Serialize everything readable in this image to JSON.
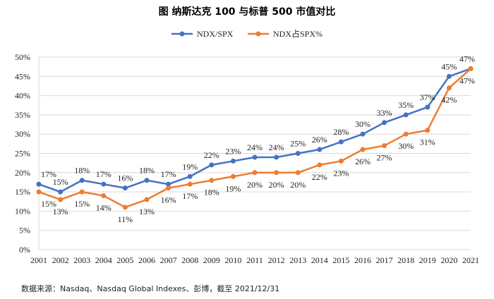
{
  "chart_data": {
    "type": "line",
    "title": "图  纳斯达克 100 与标普 500 市值对比",
    "categories": [
      "2001",
      "2002",
      "2003",
      "2004",
      "2005",
      "2006",
      "2007",
      "2008",
      "2009",
      "2010",
      "2011",
      "2012",
      "2013",
      "2014",
      "2015",
      "2016",
      "2017",
      "2018",
      "2019",
      "2020",
      "2021"
    ],
    "series": [
      {
        "name": "NDX/SPX",
        "color": "#4472C4",
        "values": [
          17,
          15,
          18,
          17,
          16,
          18,
          17,
          19,
          22,
          23,
          24,
          24,
          25,
          26,
          28,
          30,
          33,
          35,
          37,
          45,
          47
        ]
      },
      {
        "name": "NDX占SPX%",
        "color": "#ED7D31",
        "values": [
          15,
          13,
          15,
          14,
          11,
          13,
          16,
          17,
          18,
          19,
          20,
          20,
          20,
          22,
          23,
          26,
          27,
          30,
          31,
          42,
          47
        ]
      }
    ],
    "ylim": [
      0,
      50
    ],
    "yticks": [
      0,
      5,
      10,
      15,
      20,
      25,
      30,
      35,
      40,
      45,
      50
    ],
    "value_suffix": "%",
    "grid": true,
    "legend": "top-center",
    "source": "数据来源：Nasdaq、Nasdaq Global Indexes、彭博，截至 2021/12/31"
  }
}
